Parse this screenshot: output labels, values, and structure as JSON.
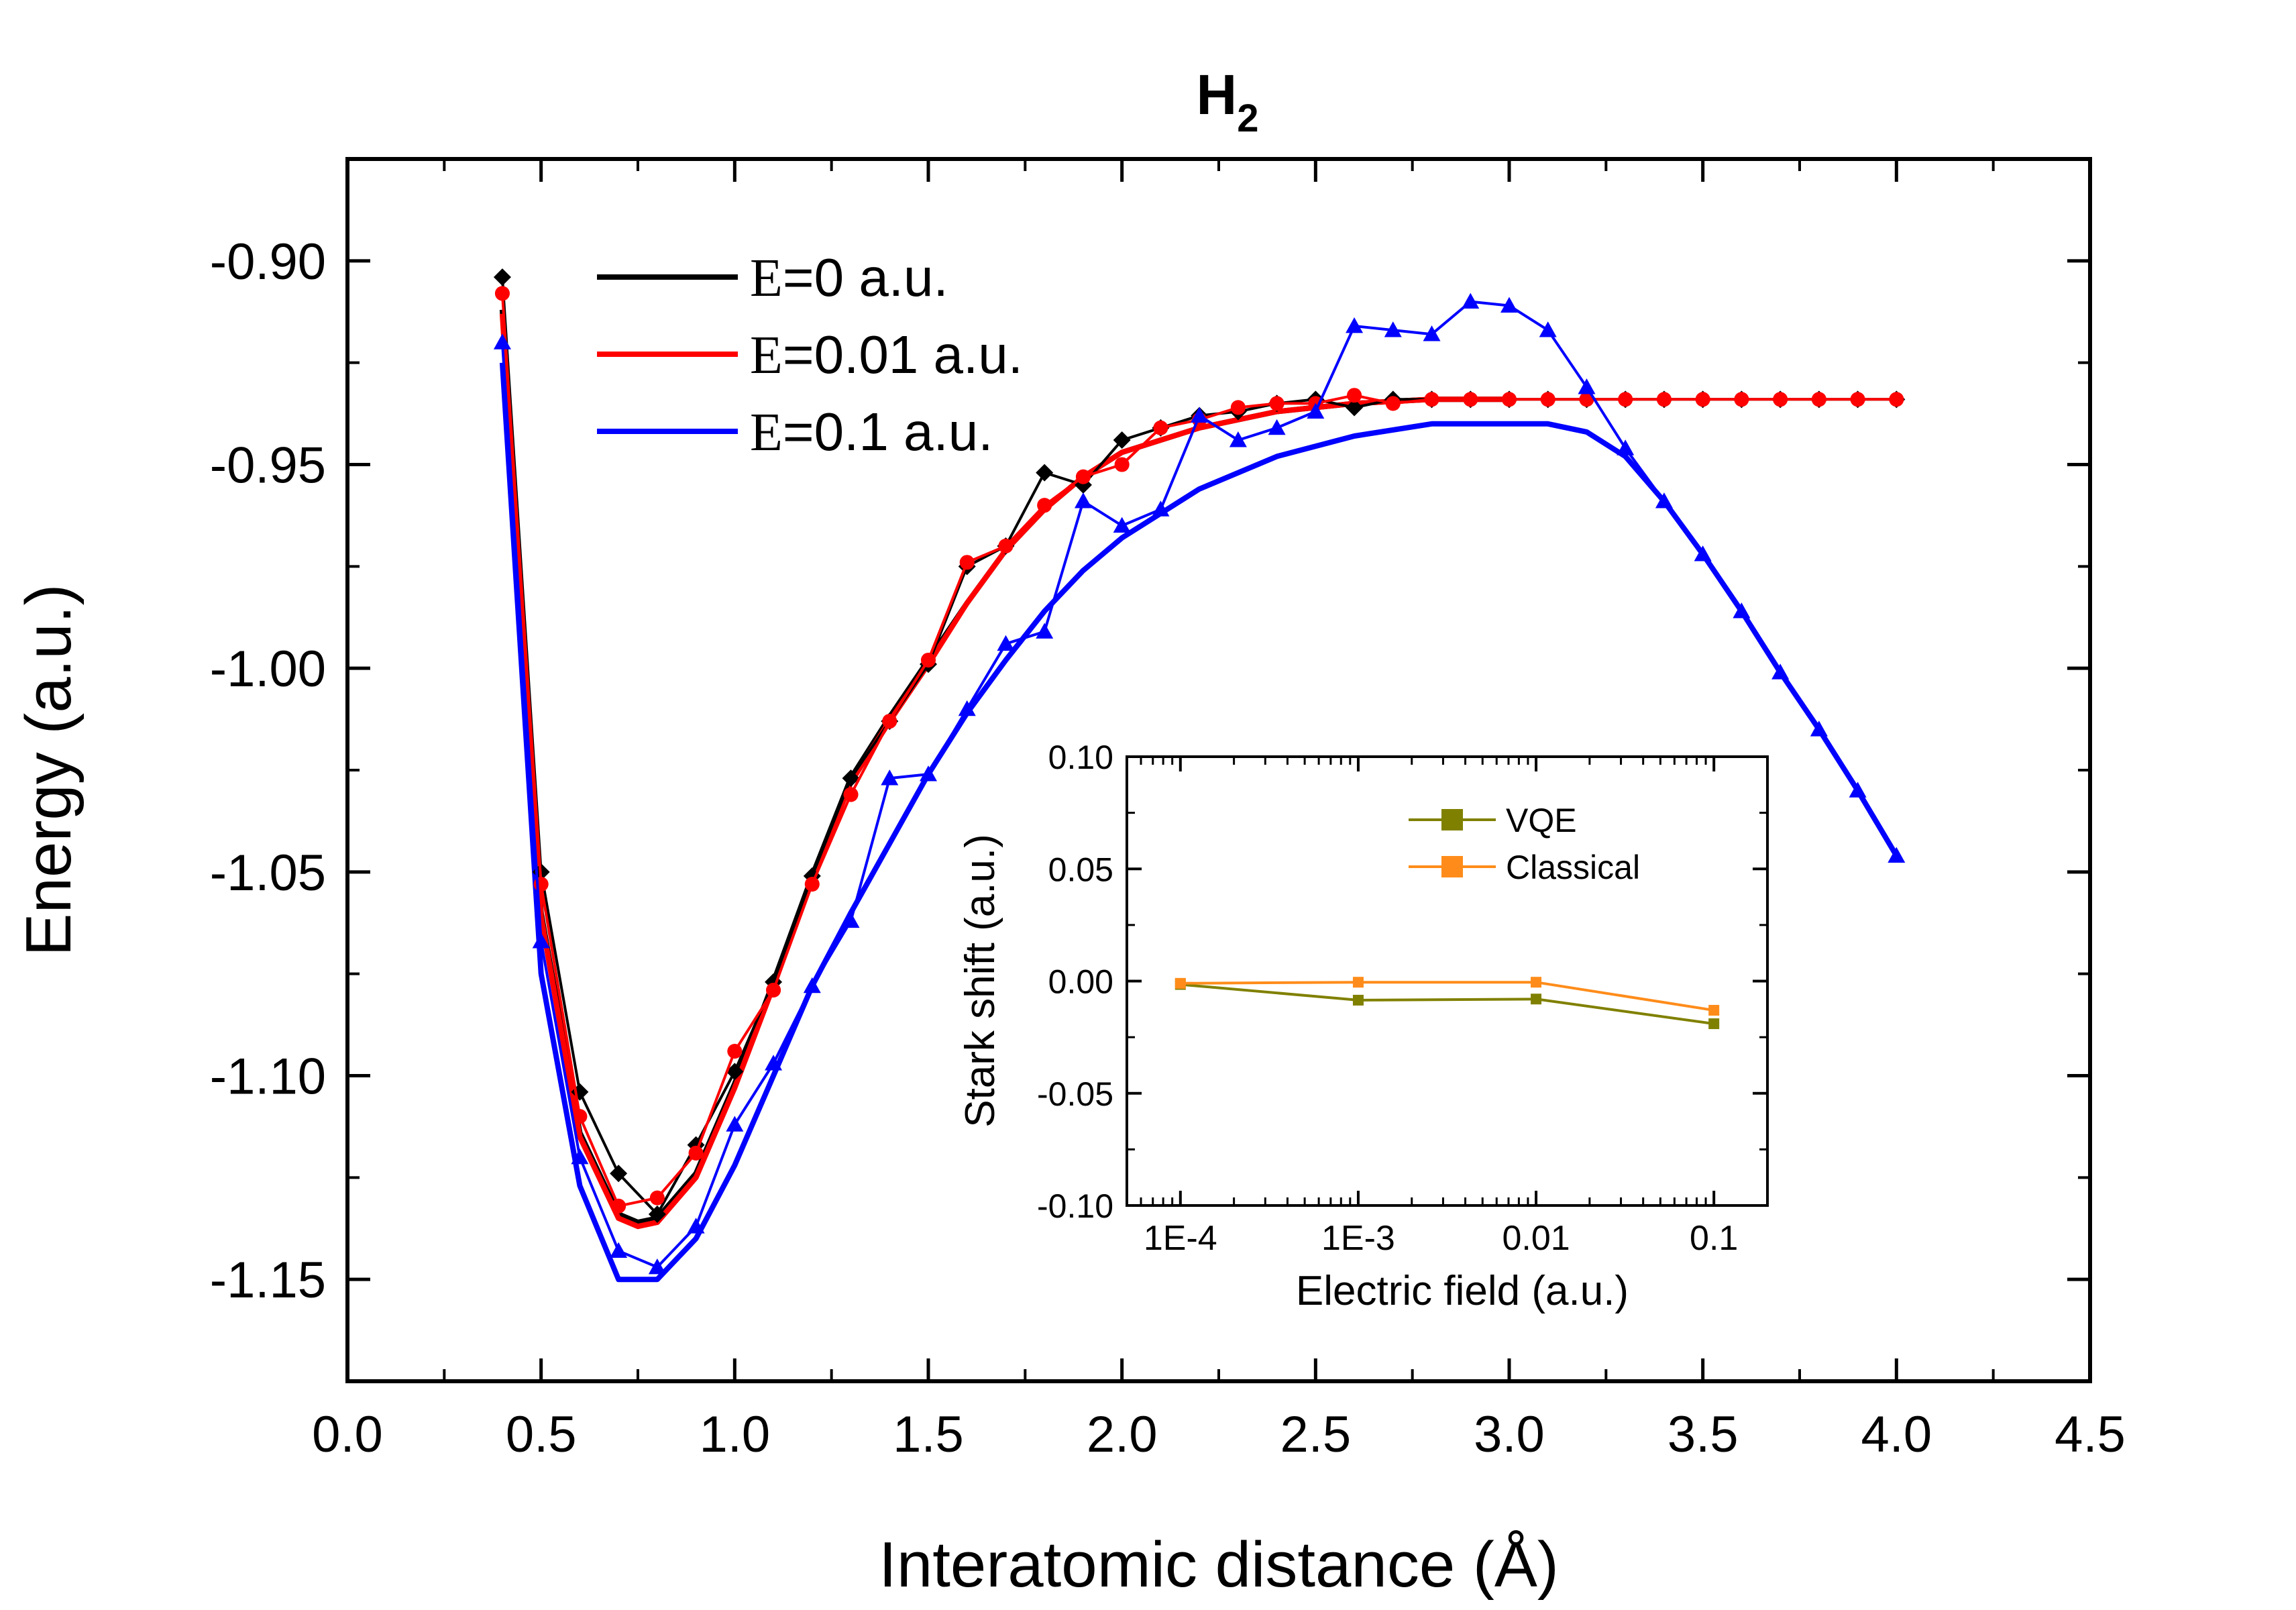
{
  "chart_data": [
    {
      "type": "line",
      "title": "H",
      "title_subscript": "2",
      "xlabel": "Interatomic distance (Å)",
      "ylabel": "Energy (a.u.)",
      "xlim": [
        0.0,
        4.5
      ],
      "ylim": [
        -1.175,
        -0.875
      ],
      "x_ticks": [
        "0.0",
        "0.5",
        "1.0",
        "1.5",
        "2.0",
        "2.5",
        "3.0",
        "3.5",
        "4.0",
        "4.5"
      ],
      "y_ticks": [
        "-0.90",
        "-0.95",
        "-1.00",
        "-1.05",
        "-1.10",
        "-1.15"
      ],
      "grid": false,
      "legend_position": "top-left",
      "legend": [
        {
          "symbol": "E",
          "text": "=0 a.u.",
          "color": "#000000"
        },
        {
          "symbol": "E",
          "text": "=0.01 a.u.",
          "color": "#ff0000"
        },
        {
          "symbol": "E",
          "text": "=0.1 a.u.",
          "color": "#0000ff"
        }
      ],
      "series": [
        {
          "name": "E=0 a.u.",
          "color": "#000000",
          "marker": "diamond",
          "x": [
            0.4,
            0.5,
            0.6,
            0.7,
            0.8,
            0.9,
            1.0,
            1.1,
            1.2,
            1.3,
            1.4,
            1.5,
            1.6,
            1.7,
            1.8,
            1.9,
            2.0,
            2.1,
            2.2,
            2.3,
            2.4,
            2.5,
            2.6,
            2.7,
            2.8,
            2.9,
            3.0,
            3.1,
            3.2,
            3.3,
            3.4,
            3.5,
            3.6,
            3.7,
            3.8,
            3.9,
            4.0
          ],
          "y": [
            -0.904,
            -1.05,
            -1.104,
            -1.124,
            -1.134,
            -1.117,
            -1.099,
            -1.077,
            -1.051,
            -1.027,
            -1.013,
            -0.999,
            -0.975,
            -0.97,
            -0.952,
            -0.955,
            -0.944,
            -0.941,
            -0.938,
            -0.937,
            -0.935,
            -0.934,
            -0.936,
            -0.934,
            -0.934,
            -0.934,
            -0.934,
            -0.934,
            -0.934,
            -0.934,
            -0.934,
            -0.934,
            -0.934,
            -0.934,
            -0.934,
            -0.934,
            -0.934
          ]
        },
        {
          "name": "E=0.01 a.u.",
          "color": "#ff0000",
          "marker": "circle",
          "x": [
            0.4,
            0.5,
            0.6,
            0.7,
            0.8,
            0.9,
            1.0,
            1.1,
            1.2,
            1.3,
            1.4,
            1.5,
            1.6,
            1.7,
            1.8,
            1.9,
            2.0,
            2.1,
            2.2,
            2.3,
            2.4,
            2.5,
            2.6,
            2.7,
            2.8,
            2.9,
            3.0,
            3.1,
            3.2,
            3.3,
            3.4,
            3.5,
            3.6,
            3.7,
            3.8,
            3.9,
            4.0
          ],
          "y": [
            -0.908,
            -1.053,
            -1.11,
            -1.132,
            -1.13,
            -1.119,
            -1.094,
            -1.079,
            -1.053,
            -1.031,
            -1.013,
            -0.998,
            -0.974,
            -0.97,
            -0.96,
            -0.953,
            -0.95,
            -0.941,
            -0.939,
            -0.936,
            -0.935,
            -0.935,
            -0.933,
            -0.935,
            -0.934,
            -0.934,
            -0.934,
            -0.934,
            -0.934,
            -0.934,
            -0.934,
            -0.934,
            -0.934,
            -0.934,
            -0.934,
            -0.934,
            -0.934
          ]
        },
        {
          "name": "E=0.1 a.u.",
          "color": "#0000ff",
          "marker": "triangle",
          "x": [
            0.4,
            0.5,
            0.6,
            0.7,
            0.8,
            0.9,
            1.0,
            1.1,
            1.2,
            1.3,
            1.4,
            1.5,
            1.6,
            1.7,
            1.8,
            1.9,
            2.0,
            2.1,
            2.2,
            2.3,
            2.4,
            2.5,
            2.6,
            2.7,
            2.8,
            2.9,
            3.0,
            3.1,
            3.2,
            3.3,
            3.4,
            3.5,
            3.6,
            3.7,
            3.8,
            3.9,
            4.0
          ],
          "y": [
            -0.92,
            -1.067,
            -1.12,
            -1.143,
            -1.147,
            -1.137,
            -1.112,
            -1.097,
            -1.078,
            -1.062,
            -1.027,
            -1.026,
            -1.01,
            -0.994,
            -0.991,
            -0.959,
            -0.965,
            -0.961,
            -0.938,
            -0.944,
            -0.941,
            -0.937,
            -0.916,
            -0.917,
            -0.918,
            -0.91,
            -0.911,
            -0.917,
            -0.931,
            -0.946,
            -0.959,
            -0.972,
            -0.986,
            -1.001,
            -1.015,
            -1.03,
            -1.046
          ]
        }
      ],
      "fit_curves": [
        {
          "color": "#000000",
          "x": [
            0.4,
            0.5,
            0.6,
            0.7,
            0.75,
            0.8,
            0.9,
            1.0,
            1.1,
            1.2,
            1.3,
            1.4,
            1.5,
            1.6,
            1.7,
            1.8,
            1.9,
            2.0,
            2.2,
            2.4,
            2.6,
            2.8,
            3.0
          ],
          "y": [
            -0.912,
            -1.06,
            -1.114,
            -1.134,
            -1.136,
            -1.135,
            -1.124,
            -1.102,
            -1.077,
            -1.051,
            -1.027,
            -1.012,
            -0.998,
            -0.984,
            -0.971,
            -0.961,
            -0.953,
            -0.947,
            -0.941,
            -0.937,
            -0.935,
            -0.934,
            -0.934
          ]
        },
        {
          "color": "#ff0000",
          "x": [
            0.4,
            0.5,
            0.6,
            0.7,
            0.75,
            0.8,
            0.9,
            1.0,
            1.1,
            1.2,
            1.3,
            1.4,
            1.5,
            1.6,
            1.7,
            1.8,
            1.9,
            2.0,
            2.2,
            2.4,
            2.6,
            2.8,
            3.0
          ],
          "y": [
            -0.913,
            -1.061,
            -1.115,
            -1.135,
            -1.137,
            -1.136,
            -1.125,
            -1.103,
            -1.078,
            -1.052,
            -1.028,
            -1.013,
            -0.999,
            -0.984,
            -0.971,
            -0.961,
            -0.953,
            -0.947,
            -0.941,
            -0.937,
            -0.935,
            -0.934,
            -0.934
          ]
        },
        {
          "color": "#0000ff",
          "x": [
            0.4,
            0.5,
            0.6,
            0.7,
            0.8,
            0.9,
            1.0,
            1.1,
            1.2,
            1.3,
            1.4,
            1.5,
            1.6,
            1.7,
            1.8,
            1.9,
            2.0,
            2.2,
            2.4,
            2.6,
            2.8,
            3.0,
            3.1,
            3.2,
            3.3,
            3.4,
            3.5,
            3.6,
            3.7,
            3.8,
            3.9,
            4.0
          ],
          "y": [
            -0.925,
            -1.075,
            -1.127,
            -1.15,
            -1.15,
            -1.14,
            -1.122,
            -1.1,
            -1.078,
            -1.06,
            -1.043,
            -1.026,
            -1.011,
            -0.998,
            -0.986,
            -0.976,
            -0.968,
            -0.956,
            -0.948,
            -0.943,
            -0.94,
            -0.94,
            -0.94,
            -0.942,
            -0.948,
            -0.959,
            -0.972,
            -0.986,
            -1.001,
            -1.015,
            -1.03,
            -1.046
          ]
        }
      ]
    },
    {
      "type": "line",
      "xlabel": "Electric field (a.u.)",
      "ylabel": "Stark shift (a.u.)",
      "xscale": "log",
      "xlim": [
        5e-05,
        0.2
      ],
      "ylim": [
        -0.1,
        0.1
      ],
      "x_ticks": [
        {
          "value": 0.0001,
          "label": "1E-4"
        },
        {
          "value": 0.001,
          "label": "1E-3"
        },
        {
          "value": 0.01,
          "label": "0.01"
        },
        {
          "value": 0.1,
          "label": "0.1"
        }
      ],
      "y_ticks": [
        "0.10",
        "0.05",
        "0.00",
        "-0.05",
        "-0.10"
      ],
      "grid": false,
      "legend_position": "top-right",
      "series": [
        {
          "name": "VQE",
          "color": "#808000",
          "marker": "square",
          "x": [
            0.0001,
            0.001,
            0.01,
            0.1
          ],
          "y": [
            -0.0015,
            -0.0085,
            -0.008,
            -0.019
          ]
        },
        {
          "name": "Classical",
          "color": "#ff8c1a",
          "marker": "square",
          "x": [
            0.0001,
            0.001,
            0.01,
            0.1
          ],
          "y": [
            -0.001,
            -0.0005,
            -0.0005,
            -0.013
          ]
        }
      ]
    }
  ]
}
